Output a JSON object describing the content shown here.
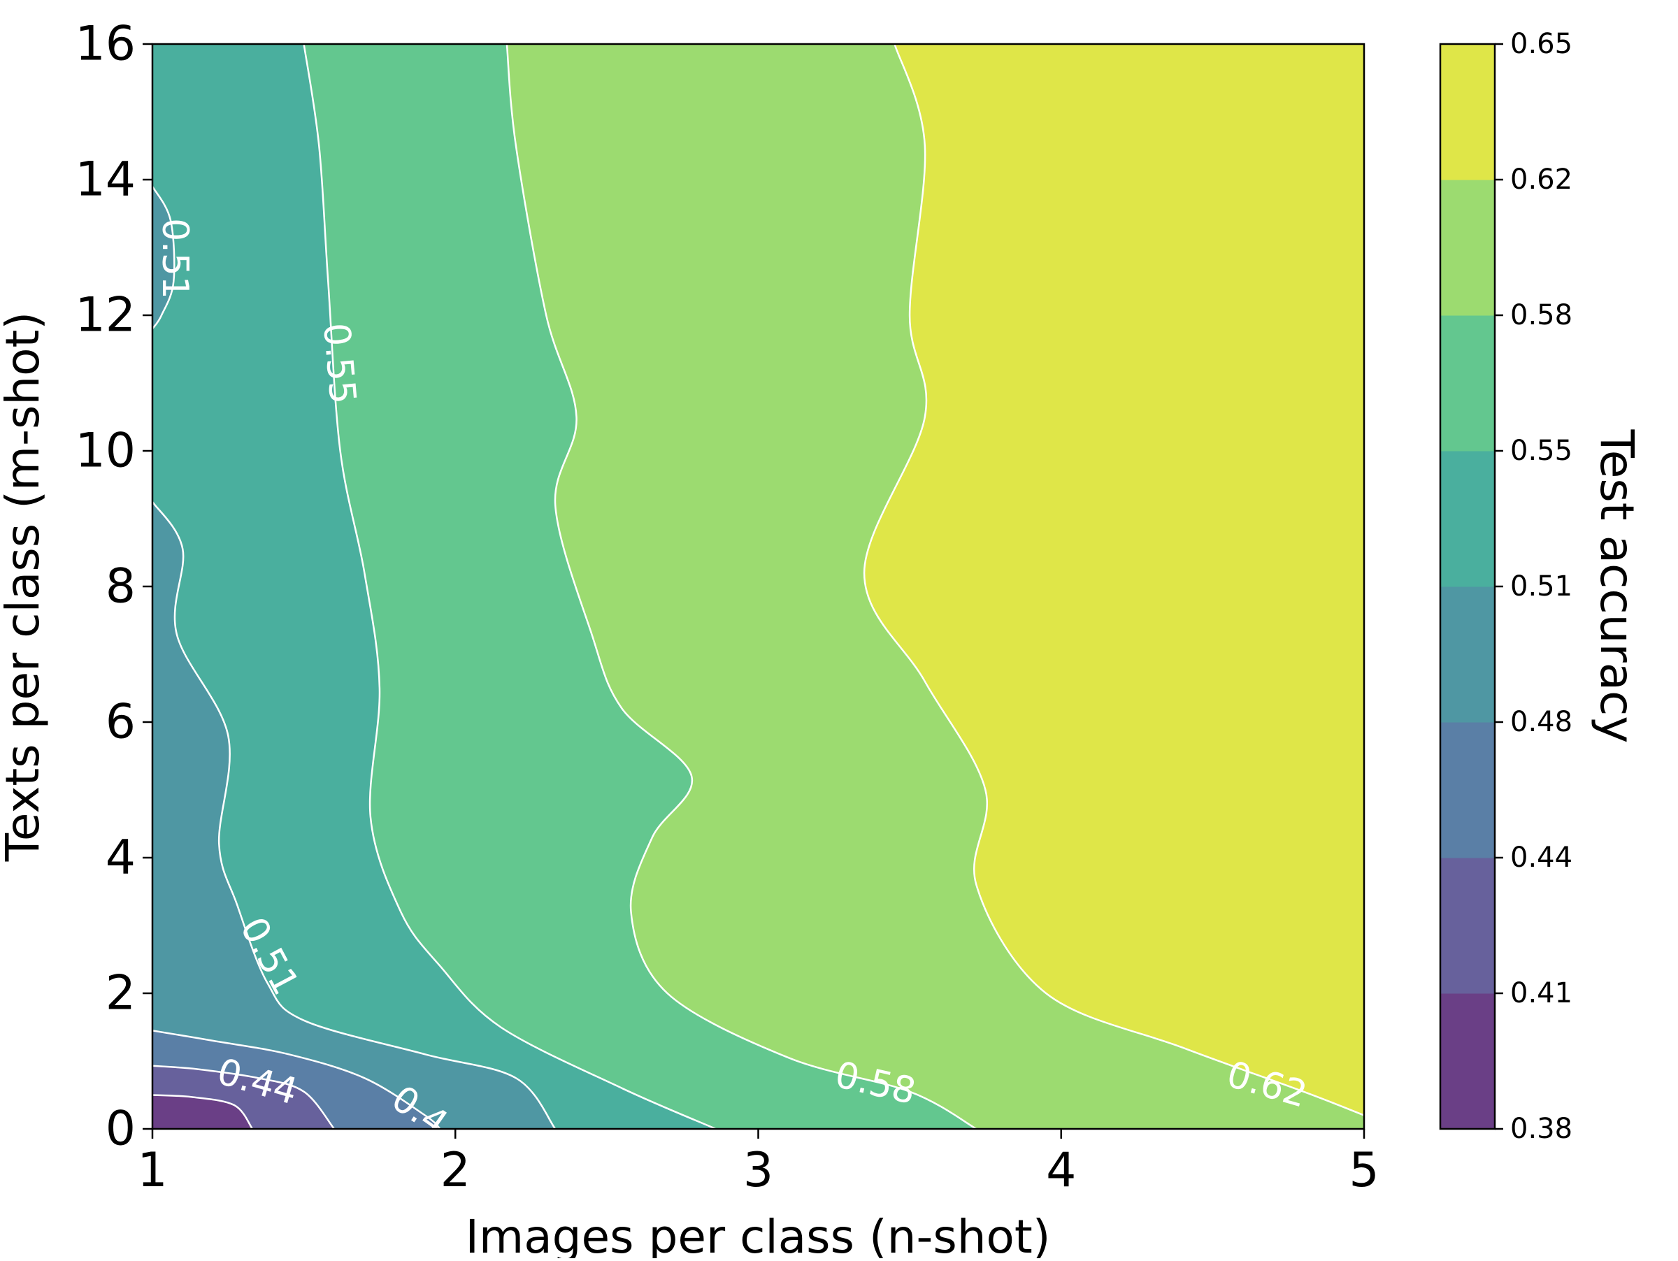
{
  "chart_data": {
    "type": "contour",
    "xlabel": "Images per class (n-shot)",
    "ylabel": "Texts per class (m-shot)",
    "xlim": [
      1,
      5
    ],
    "ylim": [
      0,
      16
    ],
    "xticks": [
      "1",
      "2",
      "3",
      "4",
      "5"
    ],
    "yticks": [
      "0",
      "2",
      "4",
      "6",
      "8",
      "10",
      "12",
      "14",
      "16"
    ],
    "colorbar": {
      "label": "Test accuracy",
      "levels": [
        "0.38",
        "0.41",
        "0.44",
        "0.48",
        "0.51",
        "0.55",
        "0.58",
        "0.62",
        "0.65"
      ],
      "colors": [
        "#6a3f86",
        "#67619c",
        "#5a7fa6",
        "#4f97a3",
        "#4aaf9e",
        "#63c78f",
        "#9cdb70",
        "#dfe648"
      ]
    },
    "contour_labels": [
      {
        "text": "0.51",
        "level": 0.51
      },
      {
        "text": "0.55",
        "level": 0.55
      },
      {
        "text": "0.51",
        "level": 0.51
      },
      {
        "text": "0.44",
        "level": 0.44
      },
      {
        "text": "0.4",
        "level": 0.41
      },
      {
        "text": "0.58",
        "level": 0.58
      },
      {
        "text": "0.62",
        "level": 0.62
      }
    ],
    "grid": false,
    "boundaries": [
      {
        "level": 0.41,
        "points": [
          [
            1,
            0.5
          ],
          [
            1.13,
            0.47
          ],
          [
            1.27,
            0.35
          ],
          [
            1.33,
            0
          ]
        ]
      },
      {
        "level": 0.44,
        "points": [
          [
            1,
            0.93
          ],
          [
            1.15,
            0.88
          ],
          [
            1.35,
            0.75
          ],
          [
            1.5,
            0.55
          ],
          [
            1.6,
            0
          ]
        ]
      },
      {
        "level": 0.48,
        "points": [
          [
            1,
            1.45
          ],
          [
            1.2,
            1.3
          ],
          [
            1.45,
            1.1
          ],
          [
            1.7,
            0.75
          ],
          [
            1.9,
            0.2
          ],
          [
            1.95,
            0
          ]
        ]
      },
      {
        "level": 0.51,
        "points": [
          [
            1,
            9.25
          ],
          [
            1.1,
            8.55
          ],
          [
            1.08,
            7.3
          ],
          [
            1.25,
            5.8
          ],
          [
            1.22,
            4.2
          ],
          [
            1.28,
            3.3
          ],
          [
            1.38,
            2.15
          ],
          [
            1.5,
            1.6
          ],
          [
            1.9,
            1.1
          ],
          [
            2.2,
            0.75
          ],
          [
            2.33,
            0
          ]
        ]
      },
      {
        "level": 0.51,
        "points": [
          [
            1,
            13.9
          ],
          [
            1.06,
            13.4
          ],
          [
            1.07,
            12.5
          ],
          [
            1.03,
            12
          ],
          [
            1,
            11.8
          ]
        ]
      },
      {
        "level": 0.55,
        "points": [
          [
            1.5,
            16
          ],
          [
            1.55,
            14.5
          ],
          [
            1.58,
            12.5
          ],
          [
            1.62,
            10
          ],
          [
            1.7,
            8.2
          ],
          [
            1.75,
            6.5
          ],
          [
            1.72,
            4.6
          ],
          [
            1.82,
            3.2
          ],
          [
            1.95,
            2.4
          ],
          [
            2.15,
            1.5
          ],
          [
            2.55,
            0.6
          ],
          [
            2.86,
            0
          ]
        ]
      },
      {
        "level": 0.58,
        "points": [
          [
            2.17,
            16
          ],
          [
            2.2,
            14.5
          ],
          [
            2.3,
            12
          ],
          [
            2.4,
            10.5
          ],
          [
            2.33,
            9.2
          ],
          [
            2.45,
            7.3
          ],
          [
            2.55,
            6.2
          ],
          [
            2.78,
            5.2
          ],
          [
            2.65,
            4.3
          ],
          [
            2.58,
            3.2
          ],
          [
            2.7,
            2
          ],
          [
            3.1,
            1.05
          ],
          [
            3.5,
            0.55
          ],
          [
            3.72,
            0
          ]
        ]
      },
      {
        "level": 0.62,
        "points": [
          [
            3.45,
            16
          ],
          [
            3.55,
            14.5
          ],
          [
            3.5,
            12
          ],
          [
            3.55,
            10.5
          ],
          [
            3.35,
            8.2
          ],
          [
            3.55,
            6.6
          ],
          [
            3.75,
            5
          ],
          [
            3.72,
            3.6
          ],
          [
            3.95,
            2
          ],
          [
            4.4,
            1.2
          ],
          [
            4.8,
            0.55
          ],
          [
            5,
            0.2
          ]
        ]
      }
    ]
  }
}
